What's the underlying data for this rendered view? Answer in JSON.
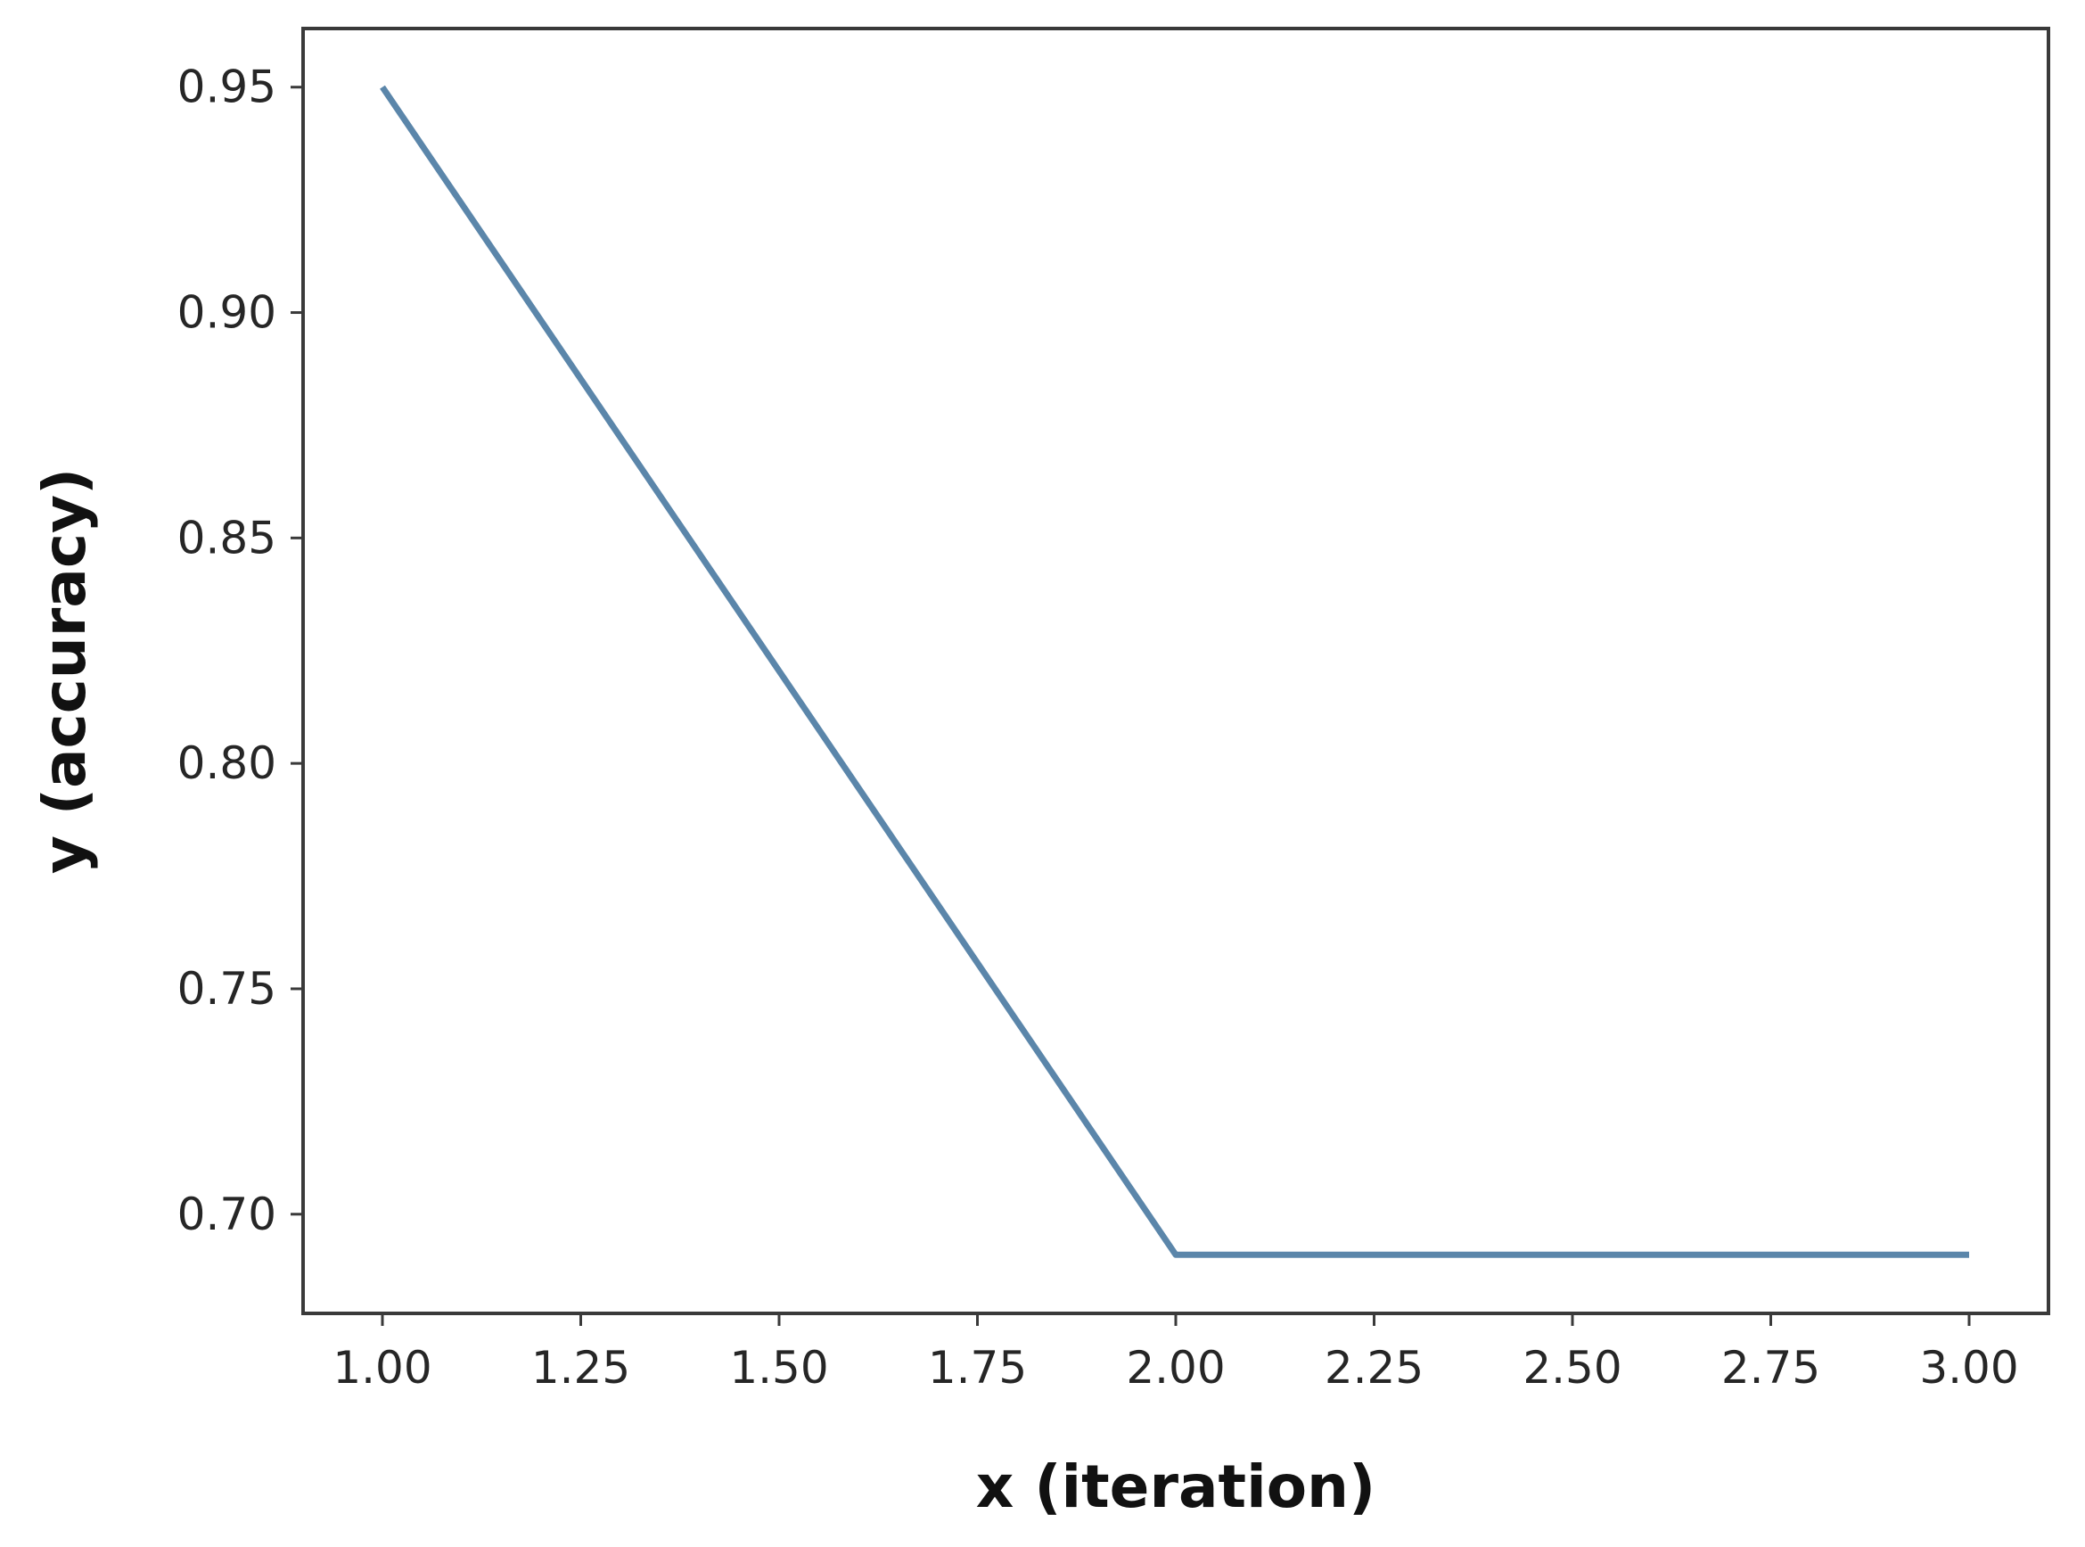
{
  "chart_data": {
    "type": "line",
    "title": "",
    "xlabel": "x (iteration)",
    "ylabel": "y (accuracy)",
    "xlim": [
      0.9,
      3.1
    ],
    "ylim": [
      0.678,
      0.963
    ],
    "xticks": [
      "1.00",
      "1.25",
      "1.50",
      "1.75",
      "2.00",
      "2.25",
      "2.50",
      "2.75",
      "3.00"
    ],
    "xtick_values": [
      1.0,
      1.25,
      1.5,
      1.75,
      2.0,
      2.25,
      2.5,
      2.75,
      3.0
    ],
    "yticks": [
      "0.70",
      "0.75",
      "0.80",
      "0.85",
      "0.90",
      "0.95"
    ],
    "ytick_values": [
      0.7,
      0.75,
      0.8,
      0.85,
      0.9,
      0.95
    ],
    "grid": false,
    "legend": "none",
    "series": [
      {
        "x": [
          1,
          2,
          3
        ],
        "values": [
          0.95,
          0.691,
          0.691
        ],
        "color": "#5b86aa"
      }
    ]
  }
}
